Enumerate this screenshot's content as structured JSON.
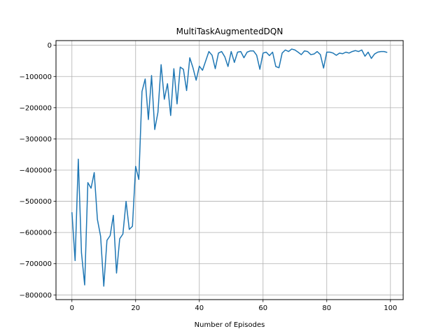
{
  "chart_data": {
    "type": "line",
    "title": "MultiTaskAugmentedDQN",
    "xlabel": "Number of Episodes",
    "ylabel": "",
    "xlim": [
      -5,
      104
    ],
    "ylim": [
      -815000,
      15000
    ],
    "xticks": [
      0,
      20,
      40,
      60,
      80,
      100
    ],
    "xtick_labels": [
      "0",
      "20",
      "40",
      "60",
      "80",
      "100"
    ],
    "yticks": [
      0,
      -100000,
      -200000,
      -300000,
      -400000,
      -500000,
      -600000,
      -700000,
      -800000
    ],
    "ytick_labels": [
      "0",
      "−100000",
      "−200000",
      "−300000",
      "−400000",
      "−500000",
      "−600000",
      "−700000",
      "−800000"
    ],
    "grid": true,
    "color": "#1f77b4",
    "series": [
      {
        "x": [
          0,
          1,
          2,
          3,
          4,
          5,
          6,
          7,
          8,
          9,
          10,
          11,
          12,
          13,
          14,
          15,
          16,
          17,
          18,
          19,
          20,
          21,
          22,
          23,
          24,
          25,
          26,
          27,
          28,
          29,
          30,
          31,
          32,
          33,
          34,
          35,
          36,
          37,
          38,
          39,
          40,
          41,
          42,
          43,
          44,
          45,
          46,
          47,
          48,
          49,
          50,
          51,
          52,
          53,
          54,
          55,
          56,
          57,
          58,
          59,
          60,
          61,
          62,
          63,
          64,
          65,
          66,
          67,
          68,
          69,
          70,
          71,
          72,
          73,
          74,
          75,
          76,
          77,
          78,
          79,
          80,
          81,
          82,
          83,
          84,
          85,
          86,
          87,
          88,
          89,
          90,
          91,
          92,
          93,
          94,
          95,
          96,
          97,
          98,
          99
        ],
        "values": [
          -535000,
          -690000,
          -365000,
          -665000,
          -768000,
          -440000,
          -458000,
          -408000,
          -558000,
          -612000,
          -772000,
          -625000,
          -610000,
          -545000,
          -730000,
          -620000,
          -605000,
          -500000,
          -590000,
          -580000,
          -388000,
          -430000,
          -148000,
          -108000,
          -238000,
          -97000,
          -270000,
          -215000,
          -62000,
          -173000,
          -123000,
          -225000,
          -75000,
          -188000,
          -70000,
          -77000,
          -145000,
          -40000,
          -72000,
          -112000,
          -67000,
          -80000,
          -50000,
          -20000,
          -32000,
          -75000,
          -25000,
          -20000,
          -37000,
          -68000,
          -20000,
          -55000,
          -22000,
          -20000,
          -40000,
          -22000,
          -18000,
          -18000,
          -32000,
          -77000,
          -25000,
          -22000,
          -33000,
          -22000,
          -68000,
          -72000,
          -25000,
          -15000,
          -20000,
          -12000,
          -15000,
          -22000,
          -30000,
          -18000,
          -20000,
          -30000,
          -28000,
          -20000,
          -30000,
          -73000,
          -22000,
          -22000,
          -25000,
          -32000,
          -25000,
          -27000,
          -22000,
          -25000,
          -20000,
          -17000,
          -20000,
          -15000,
          -35000,
          -22000,
          -42000,
          -28000,
          -22000,
          -20000,
          -20000,
          -23000
        ]
      }
    ]
  }
}
